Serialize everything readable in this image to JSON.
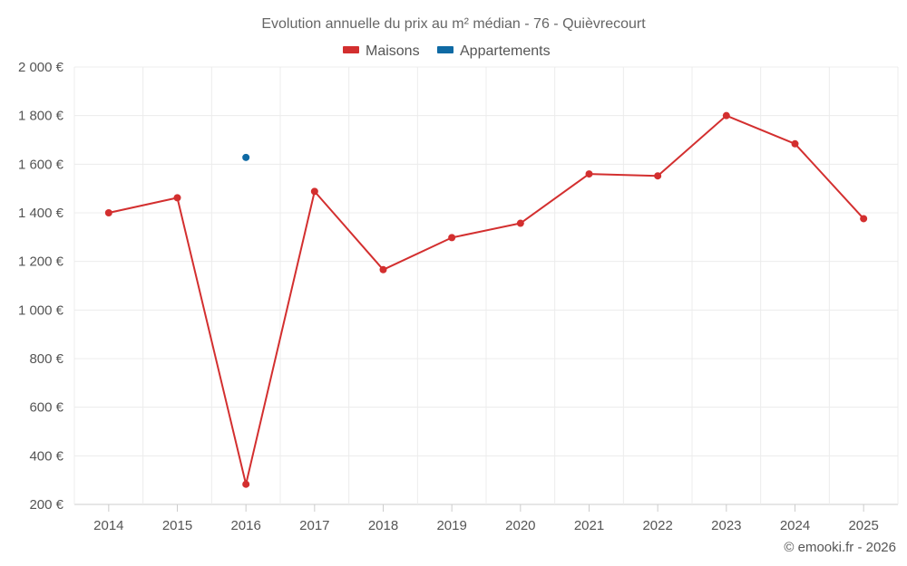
{
  "chart_data": {
    "type": "line",
    "title": "Evolution annuelle du prix au m² médian - 76 - Quièvrecourt",
    "categories": [
      "2014",
      "2015",
      "2016",
      "2017",
      "2018",
      "2019",
      "2020",
      "2021",
      "2022",
      "2023",
      "2024",
      "2025"
    ],
    "series": [
      {
        "name": "Maisons",
        "color": "#d32f2f",
        "values": [
          1400,
          1462,
          283,
          1488,
          1166,
          1298,
          1357,
          1560,
          1552,
          1800,
          1684,
          1376
        ]
      },
      {
        "name": "Appartements",
        "color": "#0f6aa4",
        "values": [
          null,
          null,
          1628,
          null,
          null,
          null,
          null,
          null,
          null,
          null,
          null,
          null
        ]
      }
    ],
    "ylim": [
      200,
      2000
    ],
    "yticks": [
      200,
      400,
      600,
      800,
      1000,
      1200,
      1400,
      1600,
      1800,
      2000
    ],
    "ytick_labels": [
      "200 €",
      "400 €",
      "600 €",
      "800 €",
      "1 000 €",
      "1 200 €",
      "1 400 €",
      "1 600 €",
      "1 800 €",
      "2 000 €"
    ],
    "xlabel": "",
    "ylabel": "",
    "grid": true,
    "legend_position": "top-center"
  },
  "credit": "© emooki.fr - 2026"
}
